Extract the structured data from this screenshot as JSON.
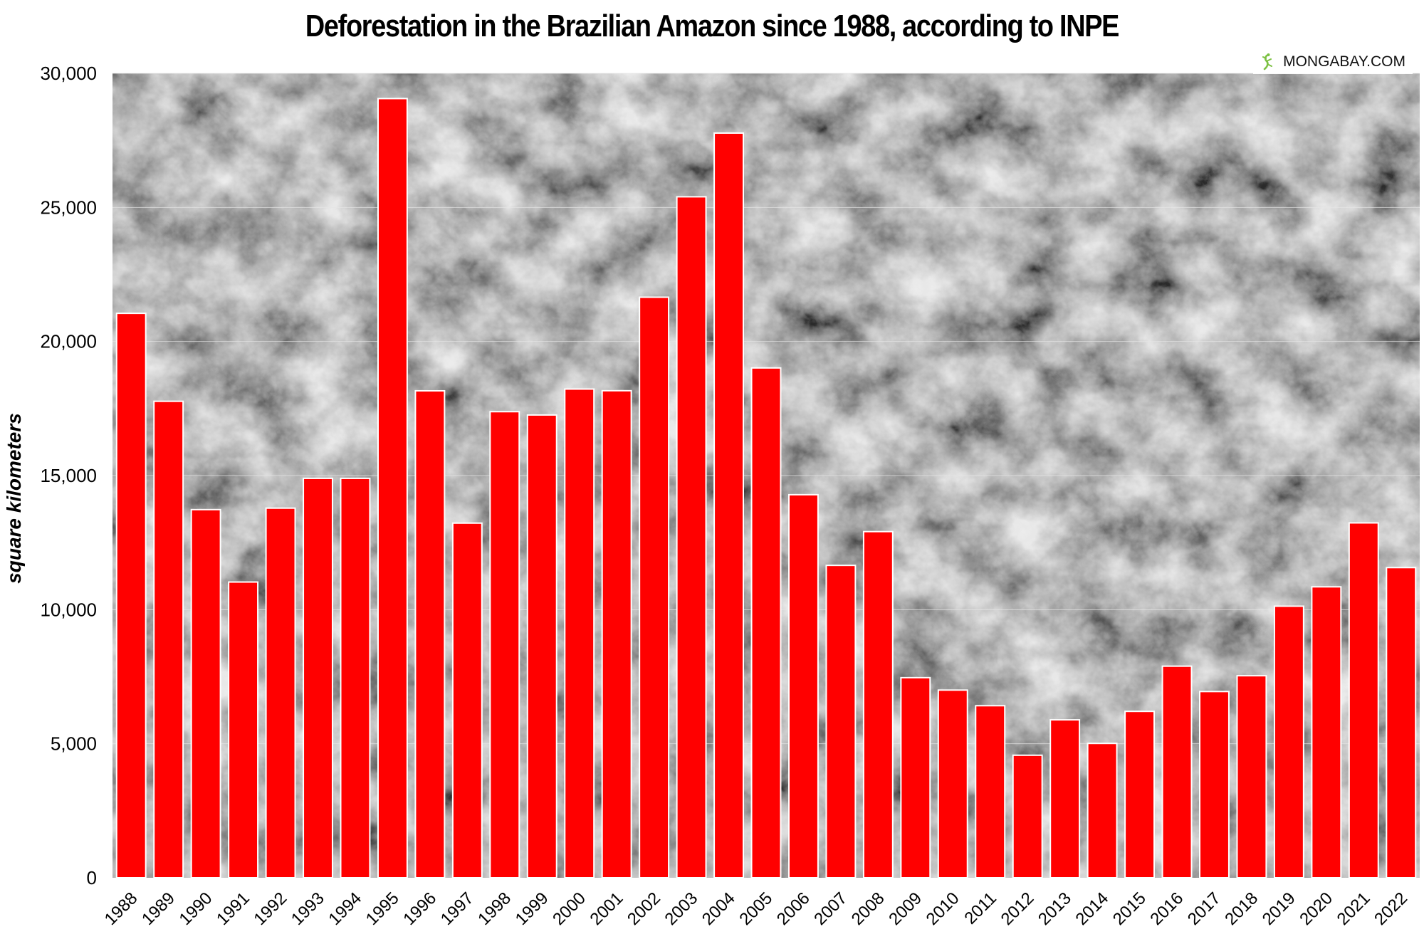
{
  "chart_data": {
    "type": "bar",
    "title": "Deforestation in the Brazilian Amazon since 1988, according to INPE",
    "xlabel": "",
    "ylabel": "square kilometers",
    "categories": [
      "1988",
      "1989",
      "1990",
      "1991",
      "1992",
      "1993",
      "1994",
      "1995",
      "1996",
      "1997",
      "1998",
      "1999",
      "2000",
      "2001",
      "2002",
      "2003",
      "2004",
      "2005",
      "2006",
      "2007",
      "2008",
      "2009",
      "2010",
      "2011",
      "2012",
      "2013",
      "2014",
      "2015",
      "2016",
      "2017",
      "2018",
      "2019",
      "2020",
      "2021",
      "2022"
    ],
    "values": [
      21050,
      17770,
      13730,
      11030,
      13786,
      14896,
      14896,
      29059,
      18161,
      13227,
      17383,
      17259,
      18226,
      18165,
      21651,
      25396,
      27772,
      19014,
      14286,
      11651,
      12911,
      7464,
      7000,
      6418,
      4571,
      5891,
      5012,
      6207,
      7893,
      6947,
      7536,
      10129,
      10851,
      13235,
      11568
    ],
    "ylim": [
      0,
      30000
    ],
    "yticks": [
      "0",
      "5,000",
      "10,000",
      "15,000",
      "20,000",
      "25,000",
      "30,000"
    ],
    "ytick_values": [
      0,
      5000,
      10000,
      15000,
      20000,
      25000,
      30000
    ],
    "grid": true,
    "background": "aerial black-and-white photograph of rainforest canopy",
    "colors": {
      "bar": "#ff0000",
      "bar_outline": "#ffffff",
      "title": "#000000",
      "gridline": "#e6e6e6"
    }
  },
  "credit": {
    "text": "MONGABAY.COM",
    "icon": "mongabay-lizard-icon"
  }
}
